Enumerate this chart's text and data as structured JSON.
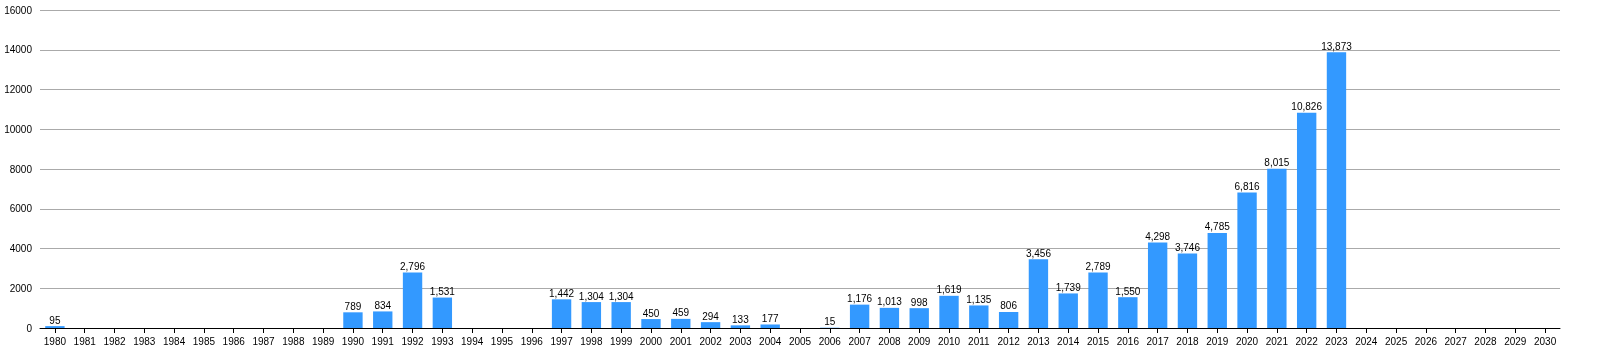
{
  "chart_data": {
    "type": "bar",
    "categories": [
      "1980",
      "1981",
      "1982",
      "1983",
      "1984",
      "1985",
      "1986",
      "1987",
      "1988",
      "1989",
      "1990",
      "1991",
      "1992",
      "1993",
      "1994",
      "1995",
      "1996",
      "1997",
      "1998",
      "1999",
      "2000",
      "2001",
      "2002",
      "2003",
      "2004",
      "2005",
      "2006",
      "2007",
      "2008",
      "2009",
      "2010",
      "2011",
      "2012",
      "2013",
      "2014",
      "2015",
      "2016",
      "2017",
      "2018",
      "2019",
      "2020",
      "2021",
      "2022",
      "2023",
      "2024",
      "2025",
      "2026",
      "2027",
      "2028",
      "2029",
      "2030"
    ],
    "values": [
      95,
      null,
      null,
      null,
      null,
      null,
      null,
      null,
      null,
      null,
      789,
      834,
      2796,
      1531,
      null,
      null,
      null,
      1442,
      1304,
      1304,
      450,
      459,
      294,
      133,
      177,
      null,
      15,
      1176,
      1013,
      998,
      1619,
      1135,
      806,
      3456,
      1739,
      2789,
      1550,
      4298,
      3746,
      4785,
      6816,
      8015,
      10826,
      13873,
      null,
      null,
      null,
      null,
      null,
      null,
      null
    ],
    "value_labels": [
      "95",
      null,
      null,
      null,
      null,
      null,
      null,
      null,
      null,
      null,
      "789",
      "834",
      "2,796",
      "1,531",
      null,
      null,
      null,
      "1,442",
      "1,304",
      "1,304",
      "450",
      "459",
      "294",
      "133",
      "177",
      null,
      "15",
      "1,176",
      "1,013",
      "998",
      "1,619",
      "1,135",
      "806",
      "3,456",
      "1,739",
      "2,789",
      "1,550",
      "4,298",
      "3,746",
      "4,785",
      "6,816",
      "8,015",
      "10,826",
      "13,873",
      null,
      null,
      null,
      null,
      null,
      null,
      null
    ],
    "color": "#3399ff",
    "ylim": [
      0,
      16000
    ],
    "yticks": [
      0,
      2000,
      4000,
      6000,
      8000,
      10000,
      12000,
      14000,
      16000
    ],
    "grid": "y"
  }
}
